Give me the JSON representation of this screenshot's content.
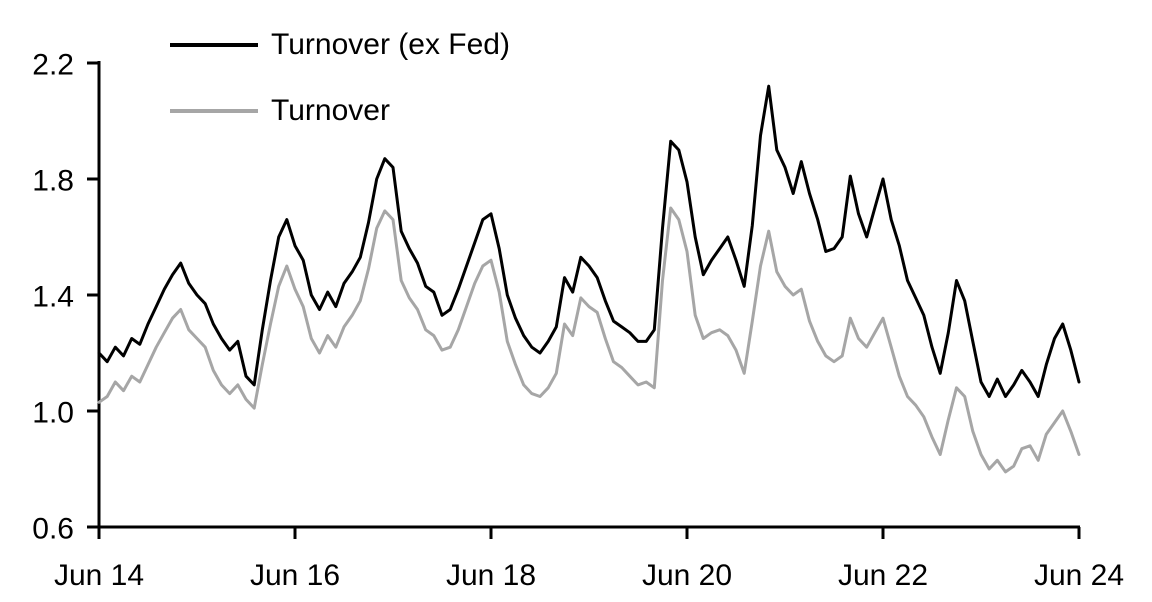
{
  "chart_data": {
    "type": "line",
    "title": "",
    "x_tick_labels": [
      "Jun 14",
      "Jun 16",
      "Jun 18",
      "Jun 20",
      "Jun 22",
      "Jun 24"
    ],
    "x_sampling": "monthly from Jun 2014 to Jun 2024",
    "y_ticks": [
      0.6,
      1.0,
      1.4,
      1.8,
      2.2
    ],
    "ylim": [
      0.6,
      2.2
    ],
    "grid": false,
    "legend_position": "top-left",
    "axis_color": "#000000",
    "background_color": "#ffffff",
    "series": [
      {
        "id": "turnover-ex-fed",
        "name": "Turnover (ex Fed)",
        "color": "#000000",
        "line_width": 3,
        "values": [
          1.2,
          1.17,
          1.22,
          1.19,
          1.25,
          1.23,
          1.3,
          1.36,
          1.42,
          1.47,
          1.51,
          1.44,
          1.4,
          1.37,
          1.3,
          1.25,
          1.21,
          1.24,
          1.12,
          1.09,
          1.28,
          1.45,
          1.6,
          1.66,
          1.57,
          1.52,
          1.4,
          1.35,
          1.41,
          1.36,
          1.44,
          1.48,
          1.53,
          1.65,
          1.8,
          1.87,
          1.84,
          1.62,
          1.56,
          1.51,
          1.43,
          1.41,
          1.33,
          1.35,
          1.42,
          1.5,
          1.58,
          1.66,
          1.68,
          1.56,
          1.4,
          1.32,
          1.26,
          1.22,
          1.2,
          1.24,
          1.29,
          1.46,
          1.41,
          1.53,
          1.5,
          1.46,
          1.38,
          1.31,
          1.29,
          1.27,
          1.24,
          1.24,
          1.28,
          1.63,
          1.93,
          1.9,
          1.79,
          1.6,
          1.47,
          1.52,
          1.56,
          1.6,
          1.52,
          1.43,
          1.64,
          1.95,
          2.12,
          1.9,
          1.84,
          1.75,
          1.86,
          1.75,
          1.66,
          1.55,
          1.56,
          1.6,
          1.81,
          1.68,
          1.6,
          1.7,
          1.8,
          1.66,
          1.57,
          1.45,
          1.39,
          1.33,
          1.22,
          1.13,
          1.27,
          1.45,
          1.38,
          1.24,
          1.1,
          1.05,
          1.11,
          1.05,
          1.09,
          1.14,
          1.1,
          1.05,
          1.16,
          1.25,
          1.3,
          1.21,
          1.1
        ]
      },
      {
        "id": "turnover",
        "name": "Turnover",
        "color": "#a6a6a6",
        "line_width": 3,
        "values": [
          1.03,
          1.05,
          1.1,
          1.07,
          1.12,
          1.1,
          1.16,
          1.22,
          1.27,
          1.32,
          1.35,
          1.28,
          1.25,
          1.22,
          1.14,
          1.09,
          1.06,
          1.09,
          1.04,
          1.01,
          1.16,
          1.3,
          1.43,
          1.5,
          1.42,
          1.36,
          1.25,
          1.2,
          1.26,
          1.22,
          1.29,
          1.33,
          1.38,
          1.49,
          1.63,
          1.69,
          1.66,
          1.45,
          1.39,
          1.35,
          1.28,
          1.26,
          1.21,
          1.22,
          1.28,
          1.36,
          1.44,
          1.5,
          1.52,
          1.41,
          1.24,
          1.16,
          1.09,
          1.06,
          1.05,
          1.08,
          1.13,
          1.3,
          1.26,
          1.39,
          1.36,
          1.34,
          1.25,
          1.17,
          1.15,
          1.12,
          1.09,
          1.1,
          1.08,
          1.45,
          1.7,
          1.66,
          1.55,
          1.33,
          1.25,
          1.27,
          1.28,
          1.26,
          1.21,
          1.13,
          1.31,
          1.5,
          1.62,
          1.48,
          1.43,
          1.4,
          1.42,
          1.31,
          1.24,
          1.19,
          1.17,
          1.19,
          1.32,
          1.25,
          1.22,
          1.27,
          1.32,
          1.22,
          1.12,
          1.05,
          1.02,
          0.98,
          0.91,
          0.85,
          0.97,
          1.08,
          1.05,
          0.93,
          0.85,
          0.8,
          0.83,
          0.79,
          0.81,
          0.87,
          0.88,
          0.83,
          0.92,
          0.96,
          1.0,
          0.93,
          0.85
        ]
      }
    ]
  }
}
